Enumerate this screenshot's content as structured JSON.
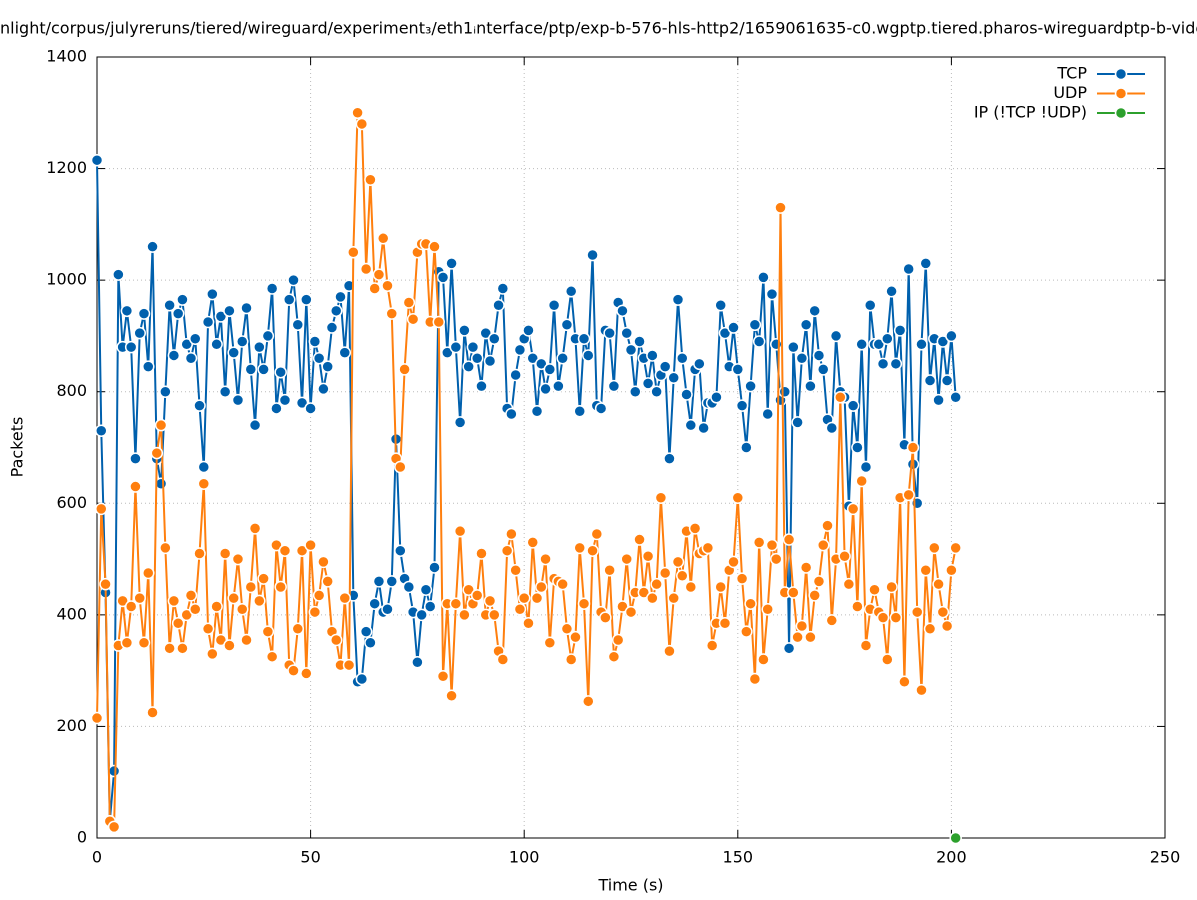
{
  "chart_data": {
    "type": "line",
    "title": "nlight/corpus/julyreruns/tiered/wireguard/experiment₃/eth1ᵢnterface/ptp/exp-b-576-hls-http2/1659061635-c0.wgptp.tiered.pharos-wireguardptp-b-vide",
    "x_label": "Time (s)",
    "y_label": "Packets",
    "xlim": [
      0,
      250
    ],
    "xticks": [
      0,
      50,
      100,
      150,
      200,
      250
    ],
    "ylim": [
      0,
      1400
    ],
    "yticks": [
      0,
      200,
      400,
      600,
      800,
      1000,
      1200,
      1400
    ],
    "grid": true,
    "legend": "top-right",
    "x": [
      0,
      1,
      2,
      3,
      4,
      5,
      6,
      7,
      8,
      9,
      10,
      11,
      12,
      13,
      14,
      15,
      16,
      17,
      18,
      19,
      20,
      21,
      22,
      23,
      24,
      25,
      26,
      27,
      28,
      29,
      30,
      31,
      32,
      33,
      34,
      35,
      36,
      37,
      38,
      39,
      40,
      41,
      42,
      43,
      44,
      45,
      46,
      47,
      48,
      49,
      50,
      51,
      52,
      53,
      54,
      55,
      56,
      57,
      58,
      59,
      60,
      61,
      62,
      63,
      64,
      65,
      66,
      67,
      68,
      69,
      70,
      71,
      72,
      73,
      74,
      75,
      76,
      77,
      78,
      79,
      80,
      81,
      82,
      83,
      84,
      85,
      86,
      87,
      88,
      89,
      90,
      91,
      92,
      93,
      94,
      95,
      96,
      97,
      98,
      99,
      100,
      101,
      102,
      103,
      104,
      105,
      106,
      107,
      108,
      109,
      110,
      111,
      112,
      113,
      114,
      115,
      116,
      117,
      118,
      119,
      120,
      121,
      122,
      123,
      124,
      125,
      126,
      127,
      128,
      129,
      130,
      131,
      132,
      133,
      134,
      135,
      136,
      137,
      138,
      139,
      140,
      141,
      142,
      143,
      144,
      145,
      146,
      147,
      148,
      149,
      150,
      151,
      152,
      153,
      154,
      155,
      156,
      157,
      158,
      159,
      160,
      161,
      162,
      163,
      164,
      165,
      166,
      167,
      168,
      169,
      170,
      171,
      172,
      173,
      174,
      175,
      176,
      177,
      178,
      179,
      180,
      181,
      182,
      183,
      184,
      185,
      186,
      187,
      188,
      189,
      190,
      191,
      192,
      193,
      194,
      195,
      196,
      197,
      198,
      199,
      200,
      201
    ],
    "series": [
      {
        "name": "TCP",
        "color": "#0060ad",
        "values": [
          1215,
          730,
          440,
          30,
          120,
          1010,
          880,
          945,
          880,
          680,
          905,
          940,
          845,
          1060,
          680,
          635,
          800,
          955,
          865,
          940,
          965,
          885,
          860,
          895,
          775,
          665,
          925,
          975,
          885,
          935,
          800,
          945,
          870,
          785,
          890,
          950,
          840,
          740,
          880,
          840,
          900,
          985,
          770,
          835,
          785,
          965,
          1000,
          920,
          780,
          965,
          770,
          890,
          860,
          805,
          845,
          915,
          945,
          970,
          870,
          990,
          435,
          280,
          285,
          370,
          350,
          420,
          460,
          405,
          410,
          460,
          715,
          515,
          465,
          450,
          405,
          315,
          400,
          445,
          415,
          485,
          1015,
          1005,
          870,
          1030,
          880,
          745,
          910,
          845,
          880,
          860,
          810,
          905,
          855,
          895,
          955,
          985,
          770,
          760,
          830,
          875,
          895,
          910,
          860,
          765,
          850,
          805,
          840,
          955,
          810,
          860,
          920,
          980,
          895,
          765,
          895,
          865,
          1045,
          775,
          770,
          910,
          905,
          810,
          960,
          945,
          905,
          875,
          800,
          890,
          860,
          815,
          865,
          800,
          830,
          845,
          680,
          825,
          965,
          860,
          795,
          740,
          840,
          850,
          735,
          780,
          780,
          790,
          955,
          905,
          845,
          915,
          840,
          775,
          700,
          810,
          920,
          890,
          1005,
          760,
          975,
          885,
          785,
          800,
          340,
          880,
          745,
          860,
          920,
          810,
          945,
          865,
          840,
          750,
          735,
          900,
          800,
          790,
          595,
          775,
          700,
          885,
          665,
          955,
          885,
          885,
          850,
          895,
          980,
          850,
          910,
          705,
          1020,
          670,
          600,
          885,
          1030,
          820,
          895,
          785,
          890,
          820,
          900,
          790
        ]
      },
      {
        "name": "UDP",
        "color": "#ff7f0e",
        "values": [
          215,
          590,
          455,
          30,
          20,
          345,
          425,
          350,
          415,
          630,
          430,
          350,
          475,
          225,
          690,
          740,
          520,
          340,
          425,
          385,
          340,
          400,
          435,
          410,
          510,
          635,
          375,
          330,
          415,
          355,
          510,
          345,
          430,
          500,
          410,
          355,
          450,
          555,
          425,
          465,
          370,
          325,
          525,
          450,
          515,
          310,
          300,
          375,
          515,
          295,
          525,
          405,
          435,
          495,
          460,
          370,
          355,
          310,
          430,
          310,
          1050,
          1300,
          1280,
          1020,
          1180,
          985,
          1010,
          1075,
          990,
          940,
          680,
          665,
          840,
          960,
          930,
          1050,
          1065,
          1065,
          925,
          1060,
          925,
          290,
          420,
          255,
          420,
          550,
          400,
          445,
          420,
          435,
          510,
          400,
          425,
          400,
          335,
          320,
          515,
          545,
          480,
          410,
          430,
          385,
          530,
          430,
          450,
          500,
          350,
          465,
          460,
          455,
          375,
          320,
          360,
          520,
          420,
          245,
          515,
          545,
          405,
          395,
          480,
          325,
          355,
          415,
          500,
          405,
          440,
          535,
          440,
          505,
          430,
          455,
          610,
          475,
          335,
          430,
          495,
          470,
          550,
          450,
          555,
          510,
          515,
          520,
          345,
          385,
          450,
          385,
          480,
          495,
          610,
          465,
          370,
          420,
          285,
          530,
          320,
          410,
          525,
          500,
          1130,
          440,
          535,
          440,
          360,
          380,
          485,
          360,
          435,
          460,
          525,
          560,
          390,
          500,
          790,
          505,
          455,
          590,
          415,
          640,
          345,
          410,
          445,
          405,
          395,
          320,
          450,
          395,
          610,
          280,
          615,
          700,
          405,
          265,
          480,
          375,
          520,
          455,
          405,
          380,
          480,
          520
        ]
      },
      {
        "name": "IP (!TCP  !UDP)",
        "color": "#2ca02c",
        "x": [
          201
        ],
        "values": [
          0
        ]
      }
    ]
  }
}
